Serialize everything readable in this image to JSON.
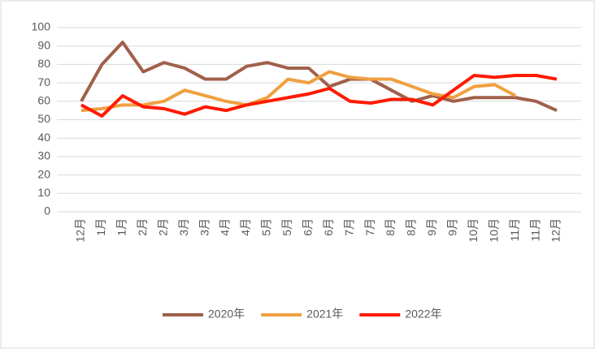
{
  "chart_data": {
    "type": "line",
    "categories": [
      "12月",
      "1月",
      "1月",
      "2月",
      "2月",
      "3月",
      "3月",
      "4月",
      "4月",
      "5月",
      "5月",
      "6月",
      "6月",
      "7月",
      "7月",
      "8月",
      "8月",
      "9月",
      "9月",
      "10月",
      "10月",
      "11月",
      "11月",
      "12月"
    ],
    "series": [
      {
        "name": "2020年",
        "color": "#a0604a",
        "values": [
          60,
          80,
          92,
          76,
          81,
          78,
          72,
          72,
          79,
          81,
          78,
          78,
          68,
          72,
          72,
          66,
          60,
          63,
          60,
          62,
          62,
          62,
          60,
          55
        ]
      },
      {
        "name": "2021年",
        "color": "#f0a040",
        "values": [
          55,
          56,
          58,
          58,
          60,
          66,
          63,
          60,
          58,
          62,
          72,
          70,
          76,
          73,
          72,
          72,
          68,
          64,
          62,
          68,
          69,
          63,
          null,
          null
        ]
      },
      {
        "name": "2022年",
        "color": "#ff1a00",
        "values": [
          58,
          52,
          63,
          57,
          56,
          53,
          57,
          55,
          58,
          60,
          62,
          64,
          67,
          60,
          59,
          61,
          61,
          58,
          66,
          74,
          73,
          74,
          74,
          72
        ]
      }
    ],
    "ylim": [
      0,
      100
    ],
    "yticks": [
      0,
      10,
      20,
      30,
      40,
      50,
      60,
      70,
      80,
      90,
      100
    ],
    "grid": true,
    "legend": "bottom"
  }
}
